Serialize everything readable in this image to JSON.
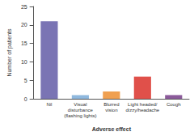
{
  "chart_data": {
    "type": "bar",
    "categories": [
      "Nil",
      "Visual\ndisturbance\n(flashing lights)",
      "Blurred\nvision",
      "Light headed/\ndizzy/headache",
      "Cough"
    ],
    "values": [
      21,
      1,
      2,
      6,
      1
    ],
    "colors": [
      "#7a74b4",
      "#8fb8de",
      "#f0a050",
      "#e0504a",
      "#8b5a9a"
    ],
    "x_label": "Adverse effect",
    "y_label": "Number of patients",
    "ylim": [
      0,
      25
    ],
    "yticks": [
      0,
      5,
      10,
      15,
      20,
      25
    ],
    "grid": false
  }
}
